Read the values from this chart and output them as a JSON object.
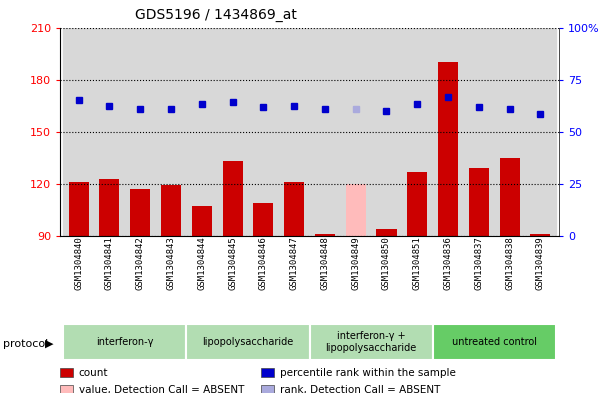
{
  "title": "GDS5196 / 1434869_at",
  "samples": [
    "GSM1304840",
    "GSM1304841",
    "GSM1304842",
    "GSM1304843",
    "GSM1304844",
    "GSM1304845",
    "GSM1304846",
    "GSM1304847",
    "GSM1304848",
    "GSM1304849",
    "GSM1304850",
    "GSM1304851",
    "GSM1304836",
    "GSM1304837",
    "GSM1304838",
    "GSM1304839"
  ],
  "counts": [
    121,
    123,
    117,
    119,
    107,
    133,
    109,
    121,
    91,
    120,
    94,
    127,
    190,
    129,
    135,
    91
  ],
  "ranks": [
    168,
    165,
    163,
    163,
    166,
    167,
    164,
    165,
    163,
    163,
    162,
    166,
    170,
    164,
    163,
    160
  ],
  "absent": [
    false,
    false,
    false,
    false,
    false,
    false,
    false,
    false,
    false,
    true,
    false,
    false,
    false,
    false,
    false,
    false
  ],
  "absent_rank": [
    false,
    false,
    false,
    false,
    false,
    false,
    false,
    false,
    false,
    true,
    false,
    false,
    false,
    false,
    false,
    false
  ],
  "groups": [
    {
      "label": "interferon-γ",
      "start": 0,
      "end": 4
    },
    {
      "label": "lipopolysaccharide",
      "start": 4,
      "end": 8
    },
    {
      "label": "interferon-γ +\nlipopolysaccharide",
      "start": 8,
      "end": 12
    },
    {
      "label": "untreated control",
      "start": 12,
      "end": 16
    }
  ],
  "group_colors": [
    "#b2ddb2",
    "#b2ddb2",
    "#b2ddb2",
    "#66cc66"
  ],
  "ylim_left": [
    90,
    210
  ],
  "ylim_right": [
    0,
    100
  ],
  "yticks_left": [
    90,
    120,
    150,
    180,
    210
  ],
  "yticks_right": [
    0,
    25,
    50,
    75,
    100
  ],
  "bar_color": "#cc0000",
  "absent_bar_color": "#ffbbbb",
  "dot_color": "#0000cc",
  "absent_dot_color": "#aaaadd",
  "bar_width": 0.65,
  "legend_items": [
    {
      "label": "count",
      "color": "#cc0000"
    },
    {
      "label": "percentile rank within the sample",
      "color": "#0000cc"
    },
    {
      "label": "value, Detection Call = ABSENT",
      "color": "#ffbbbb"
    },
    {
      "label": "rank, Detection Call = ABSENT",
      "color": "#aaaadd"
    }
  ]
}
